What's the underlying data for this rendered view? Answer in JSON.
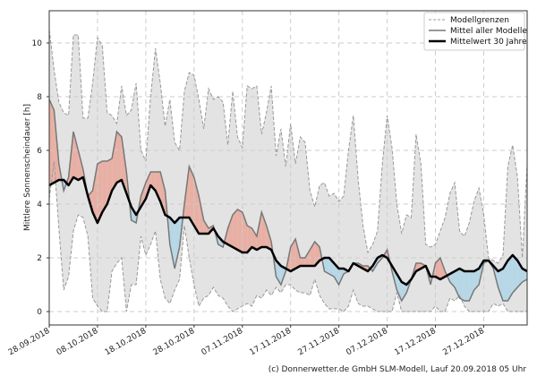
{
  "chart_data": {
    "type": "line",
    "title": "",
    "xlabel": "",
    "ylabel": "Mittlere Sonnenscheindauer [h]",
    "ylim": [
      -0.5,
      11.2
    ],
    "xlim_days": [
      0,
      99
    ],
    "x_start_date": "28.09.2018",
    "grid": true,
    "legend_position": "top-right",
    "yticks": [
      0,
      2,
      4,
      6,
      8,
      10
    ],
    "xtick_days": [
      0,
      10,
      20,
      30,
      40,
      50,
      60,
      70,
      80,
      90
    ],
    "xtick_labels": [
      "28.09.2018",
      "08.10.2018",
      "18.10.2018",
      "28.10.2018",
      "07.11.2018",
      "17.11.2018",
      "27.11.2018",
      "07.12.2018",
      "17.12.2018",
      "27.12.2018"
    ],
    "legend": [
      "Modellgrenzen",
      "Mittel aller Modelle",
      "Mittelwert 30 Jahre"
    ],
    "x": [
      0,
      1,
      2,
      3,
      4,
      5,
      6,
      7,
      8,
      9,
      10,
      11,
      12,
      13,
      14,
      15,
      16,
      17,
      18,
      19,
      20,
      21,
      22,
      23,
      24,
      25,
      26,
      27,
      28,
      29,
      30,
      31,
      32,
      33,
      34,
      35,
      36,
      37,
      38,
      39,
      40,
      41,
      42,
      43,
      44,
      45,
      46,
      47,
      48,
      49,
      50,
      51,
      52,
      53,
      54,
      55,
      56,
      57,
      58,
      59,
      60,
      61,
      62,
      63,
      64,
      65,
      66,
      67,
      68,
      69,
      70,
      71,
      72,
      73,
      74,
      75,
      76,
      77,
      78,
      79,
      80,
      81,
      82,
      83,
      84,
      85,
      86,
      87,
      88,
      89,
      90,
      91,
      92,
      93,
      94,
      95,
      96,
      97,
      98,
      99
    ],
    "series": [
      {
        "name": "Modellgrenzen oben",
        "values": [
          10.5,
          9.0,
          7.8,
          7.4,
          7.3,
          10.3,
          10.3,
          7.2,
          7.2,
          8.5,
          10.2,
          9.9,
          7.4,
          7.3,
          7.0,
          8.4,
          7.3,
          7.5,
          8.5,
          6.0,
          5.6,
          8.0,
          9.8,
          8.5,
          6.9,
          7.9,
          6.3,
          6.0,
          8.2,
          8.9,
          8.8,
          7.9,
          6.8,
          8.3,
          7.9,
          8.0,
          7.8,
          6.2,
          8.2,
          6.5,
          6.1,
          8.4,
          8.3,
          8.4,
          6.6,
          7.4,
          8.4,
          5.8,
          6.8,
          5.4,
          7.0,
          5.5,
          6.5,
          6.3,
          4.5,
          3.9,
          4.7,
          4.8,
          4.3,
          4.4,
          4.1,
          4.3,
          6.0,
          7.3,
          4.9,
          3.2,
          2.2,
          2.5,
          3.0,
          5.5,
          7.3,
          6.1,
          4.0,
          2.9,
          3.6,
          3.5,
          6.6,
          5.5,
          2.5,
          2.4,
          2.5,
          3.0,
          3.5,
          4.4,
          4.8,
          3.0,
          2.8,
          3.3,
          4.1,
          4.6,
          3.6,
          2.0,
          1.9,
          1.8,
          2.1,
          5.4,
          6.2,
          5.0,
          2.0,
          5.5
        ],
        "values_min": []
      },
      {
        "name": "Modellgrenzen unten",
        "values": [
          4.2,
          5.6,
          3.1,
          0.8,
          1.3,
          3.0,
          3.6,
          3.5,
          2.8,
          0.5,
          0.2,
          0.0,
          0.0,
          1.5,
          1.8,
          2.0,
          0.0,
          1.0,
          1.0,
          2.8,
          2.1,
          2.5,
          3.0,
          1.2,
          0.5,
          0.3,
          0.8,
          1.2,
          3.2,
          2.0,
          1.0,
          0.2,
          0.5,
          0.6,
          0.9,
          0.6,
          0.5,
          0.2,
          0.0,
          0.1,
          0.2,
          0.3,
          0.2,
          0.6,
          0.5,
          0.8,
          0.6,
          0.9,
          0.7,
          1.0,
          1.0,
          0.8,
          0.7,
          0.7,
          0.6,
          1.2,
          0.6,
          0.3,
          0.1,
          0.1,
          0.1,
          0.0,
          0.2,
          0.8,
          0.3,
          0.2,
          0.2,
          0.1,
          0.0,
          0.0,
          0.0,
          0.0,
          0.7,
          0.0,
          0.0,
          0.0,
          0.0,
          0.0,
          0.0,
          0.0,
          0.2,
          0.0,
          0.0,
          0.5,
          0.4,
          0.6,
          0.2,
          0.0,
          0.0,
          0.0,
          0.0,
          0.0,
          0.3,
          0.2,
          0.3,
          0.0,
          0.0,
          0.0,
          0.0,
          0.0
        ]
      },
      {
        "name": "Mittel aller Modelle",
        "values": [
          7.9,
          7.5,
          5.5,
          4.5,
          5.0,
          6.7,
          6.0,
          5.3,
          4.3,
          4.5,
          5.5,
          5.6,
          5.6,
          5.7,
          6.7,
          6.5,
          5.2,
          3.4,
          3.3,
          4.3,
          4.8,
          5.2,
          5.2,
          5.2,
          4.5,
          2.5,
          1.6,
          2.4,
          4.0,
          5.4,
          5.0,
          4.3,
          3.4,
          3.1,
          3.2,
          2.5,
          2.4,
          3.1,
          3.6,
          3.8,
          3.7,
          3.2,
          3.1,
          2.8,
          3.7,
          3.2,
          2.6,
          1.3,
          1.0,
          1.5,
          2.4,
          2.7,
          2.0,
          2.0,
          2.3,
          2.6,
          2.4,
          1.5,
          1.4,
          1.3,
          1.0,
          1.4,
          1.5,
          1.8,
          1.8,
          1.7,
          1.7,
          1.5,
          1.8,
          2.0,
          2.3,
          1.5,
          0.8,
          0.4,
          0.7,
          1.2,
          1.8,
          1.8,
          1.7,
          1.0,
          1.8,
          2.0,
          1.5,
          1.1,
          0.9,
          0.5,
          0.4,
          0.4,
          0.8,
          1.0,
          1.8,
          1.9,
          1.6,
          0.9,
          0.4,
          0.4,
          0.7,
          0.9,
          1.1,
          1.2
        ]
      },
      {
        "name": "Mittelwert 30 Jahre",
        "values": [
          4.7,
          4.8,
          4.9,
          4.9,
          4.7,
          5.0,
          4.9,
          5.0,
          4.3,
          3.7,
          3.3,
          3.7,
          4.0,
          4.5,
          4.8,
          4.9,
          4.4,
          3.9,
          3.6,
          3.9,
          4.2,
          4.7,
          4.5,
          4.1,
          3.6,
          3.5,
          3.3,
          3.5,
          3.5,
          3.5,
          3.2,
          2.9,
          2.9,
          2.9,
          3.1,
          2.8,
          2.6,
          2.5,
          2.4,
          2.3,
          2.2,
          2.2,
          2.4,
          2.3,
          2.4,
          2.4,
          2.3,
          1.9,
          1.7,
          1.6,
          1.5,
          1.6,
          1.7,
          1.7,
          1.7,
          1.7,
          1.9,
          2.0,
          2.0,
          1.8,
          1.6,
          1.6,
          1.5,
          1.8,
          1.7,
          1.6,
          1.5,
          1.7,
          2.0,
          2.1,
          2.0,
          1.7,
          1.4,
          1.1,
          1.0,
          1.2,
          1.5,
          1.6,
          1.7,
          1.3,
          1.3,
          1.2,
          1.3,
          1.4,
          1.5,
          1.6,
          1.5,
          1.5,
          1.5,
          1.6,
          1.9,
          1.9,
          1.7,
          1.5,
          1.6,
          1.9,
          2.1,
          1.9,
          1.6,
          1.5
        ]
      }
    ]
  },
  "footer": {
    "credit": "(c) Donnerwetter.de GmbH SLM-Modell, Lauf 20.09.2018 05 Uhr"
  },
  "colors": {
    "band_fill": "#e3e3e3",
    "above_fill": "#e8b0a5",
    "below_fill": "#b7d7e6",
    "model_mean": "#777777",
    "climate_mean": "#000000",
    "bound_line": "#999999",
    "grid": "#cccccc"
  }
}
